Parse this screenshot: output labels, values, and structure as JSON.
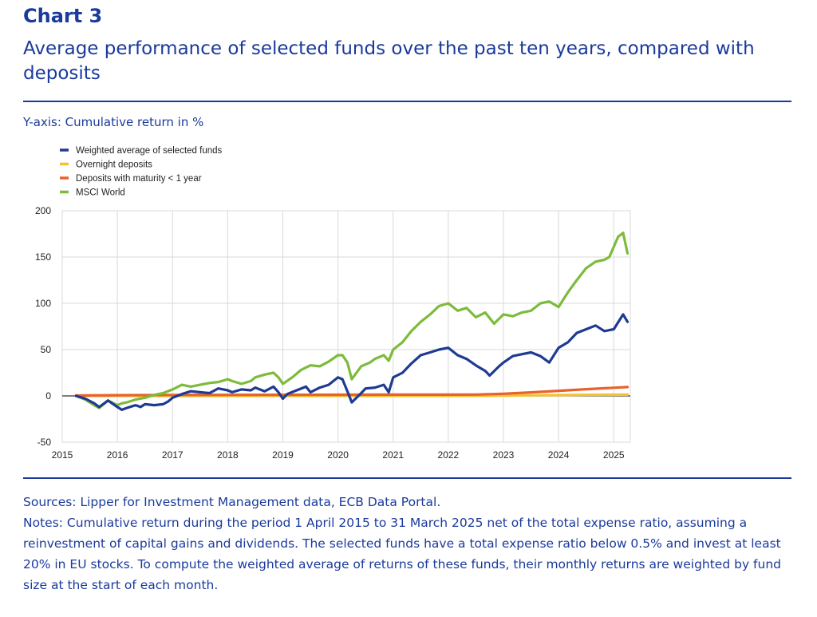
{
  "header": {
    "label": "Chart 3",
    "title": "Average performance of selected funds over the past ten years, compared with deposits"
  },
  "y_caption": "Y-axis: Cumulative return in %",
  "footer": {
    "sources": "Sources: Lipper for Investment Management data, ECB Data Portal.",
    "notes": "Notes: Cumulative return during the period 1 April 2015 to 31 March 2025 net of the total expense ratio, assuming a reinvestment of capital gains and dividends. The selected funds have a total expense ratio below 0.5% and invest at least 20% in EU stocks. To compute the weighted average of returns of these funds, their monthly returns are weighted by fund size at the start of each month."
  },
  "chart_data": {
    "type": "line",
    "title": "",
    "xlabel": "",
    "ylabel": "",
    "xlim": [
      2015.0,
      2025.3
    ],
    "ylim": [
      -50,
      200
    ],
    "x_ticks": [
      2015,
      2016,
      2017,
      2018,
      2019,
      2020,
      2021,
      2022,
      2023,
      2024,
      2025
    ],
    "y_ticks": [
      -50,
      0,
      50,
      100,
      150,
      200
    ],
    "grid": true,
    "legend": "top-left",
    "series": [
      {
        "name": "Weighted average of selected funds",
        "color": "#1f3a93",
        "x": [
          2015.25,
          2015.42,
          2015.58,
          2015.67,
          2015.83,
          2016.0,
          2016.08,
          2016.17,
          2016.33,
          2016.42,
          2016.5,
          2016.67,
          2016.83,
          2016.92,
          2017.0,
          2017.17,
          2017.33,
          2017.5,
          2017.67,
          2017.83,
          2018.0,
          2018.08,
          2018.25,
          2018.42,
          2018.5,
          2018.67,
          2018.83,
          2018.92,
          2019.0,
          2019.08,
          2019.25,
          2019.42,
          2019.5,
          2019.67,
          2019.83,
          2020.0,
          2020.08,
          2020.17,
          2020.25,
          2020.42,
          2020.5,
          2020.67,
          2020.83,
          2020.92,
          2021.0,
          2021.17,
          2021.33,
          2021.5,
          2021.67,
          2021.83,
          2022.0,
          2022.17,
          2022.33,
          2022.5,
          2022.67,
          2022.75,
          2022.92,
          2023.0,
          2023.17,
          2023.33,
          2023.5,
          2023.67,
          2023.83,
          2024.0,
          2024.17,
          2024.33,
          2024.5,
          2024.67,
          2024.83,
          2025.0,
          2025.17,
          2025.25
        ],
        "y": [
          0,
          -3,
          -8,
          -12,
          -5,
          -12,
          -15,
          -13,
          -10,
          -12,
          -9,
          -10,
          -9,
          -6,
          -2,
          2,
          5,
          4,
          3,
          8,
          6,
          4,
          7,
          6,
          9,
          5,
          10,
          4,
          -3,
          2,
          6,
          10,
          4,
          9,
          12,
          20,
          18,
          5,
          -7,
          3,
          8,
          9,
          12,
          4,
          20,
          25,
          35,
          44,
          47,
          50,
          52,
          44,
          40,
          33,
          27,
          22,
          32,
          36,
          43,
          45,
          47,
          43,
          36,
          52,
          58,
          68,
          72,
          76,
          70,
          72,
          88,
          80
        ]
      },
      {
        "name": "Overnight deposits",
        "color": "#f2c232",
        "x": [
          2015.25,
          2016.0,
          2017.0,
          2018.0,
          2019.0,
          2020.0,
          2021.0,
          2022.0,
          2022.75,
          2023.0,
          2023.5,
          2024.0,
          2024.5,
          2025.0,
          2025.25
        ],
        "y": [
          0,
          0,
          0,
          0,
          0,
          0,
          0,
          0,
          0.1,
          0.3,
          0.6,
          0.9,
          1.1,
          1.3,
          1.4
        ]
      },
      {
        "name": "Deposits with maturity < 1 year",
        "color": "#e8622c",
        "x": [
          2015.25,
          2016.0,
          2017.0,
          2018.0,
          2019.0,
          2020.0,
          2021.0,
          2022.0,
          2022.5,
          2023.0,
          2023.5,
          2024.0,
          2024.5,
          2025.0,
          2025.25
        ],
        "y": [
          0.4,
          0.8,
          1.0,
          1.1,
          1.2,
          1.3,
          1.4,
          1.4,
          1.5,
          2.3,
          3.8,
          5.5,
          7.2,
          8.8,
          9.6
        ]
      },
      {
        "name": "MSCI World",
        "color": "#7dbb3b",
        "x": [
          2015.25,
          2015.42,
          2015.58,
          2015.67,
          2015.83,
          2016.0,
          2016.08,
          2016.17,
          2016.33,
          2016.5,
          2016.67,
          2016.83,
          2017.0,
          2017.17,
          2017.33,
          2017.5,
          2017.67,
          2017.83,
          2018.0,
          2018.08,
          2018.25,
          2018.42,
          2018.5,
          2018.67,
          2018.83,
          2018.92,
          2019.0,
          2019.17,
          2019.33,
          2019.5,
          2019.67,
          2019.83,
          2020.0,
          2020.08,
          2020.17,
          2020.25,
          2020.42,
          2020.58,
          2020.67,
          2020.83,
          2020.92,
          2021.0,
          2021.17,
          2021.33,
          2021.5,
          2021.67,
          2021.83,
          2022.0,
          2022.17,
          2022.33,
          2022.5,
          2022.67,
          2022.83,
          2023.0,
          2023.17,
          2023.33,
          2023.5,
          2023.67,
          2023.83,
          2024.0,
          2024.17,
          2024.33,
          2024.5,
          2024.67,
          2024.83,
          2024.92,
          2025.08,
          2025.17,
          2025.25
        ],
        "y": [
          0,
          -4,
          -10,
          -13,
          -5,
          -10,
          -8,
          -7,
          -4,
          -2,
          1,
          3,
          7,
          12,
          10,
          12,
          14,
          15,
          18,
          16,
          13,
          16,
          20,
          23,
          25,
          20,
          13,
          20,
          28,
          33,
          32,
          37,
          44,
          44,
          36,
          18,
          32,
          36,
          40,
          44,
          38,
          50,
          58,
          70,
          80,
          88,
          97,
          100,
          92,
          95,
          85,
          90,
          78,
          88,
          86,
          90,
          92,
          100,
          102,
          96,
          112,
          125,
          138,
          145,
          147,
          150,
          172,
          176,
          154
        ]
      }
    ]
  }
}
